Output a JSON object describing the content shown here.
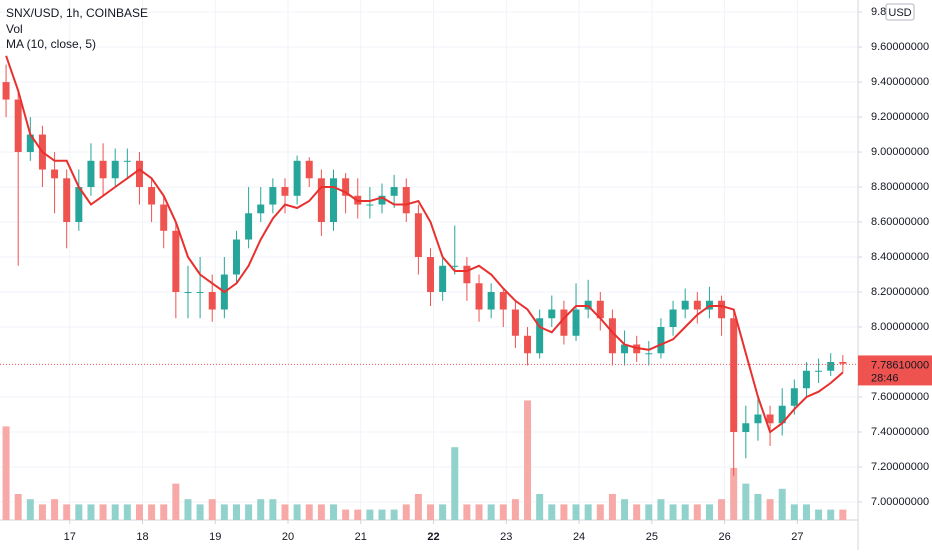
{
  "chart_data": {
    "type": "candlestick",
    "title": "SNX/USD, 1h, COINBASE",
    "volume_label": "Vol",
    "ma_label": "MA (10, close, 5)",
    "currency": "USD",
    "x": [
      2,
      6,
      10,
      14,
      18,
      22,
      26,
      30,
      34,
      38,
      42,
      46,
      50,
      54,
      58,
      62,
      66,
      70,
      74,
      78,
      82,
      86,
      90,
      94,
      98,
      102,
      106,
      110,
      114,
      118,
      122,
      126,
      130,
      134,
      138,
      142,
      146,
      150,
      154,
      158,
      162,
      166,
      170,
      174,
      178,
      182,
      186,
      190,
      194,
      198,
      202,
      206,
      210,
      214,
      218,
      222,
      226,
      230,
      234,
      238,
      242,
      246,
      250,
      254,
      258,
      262,
      266,
      270,
      274,
      278
    ],
    "open": [
      9.4,
      9.3,
      9.0,
      9.1,
      8.9,
      8.85,
      8.6,
      8.8,
      8.95,
      8.85,
      8.95,
      8.95,
      8.8,
      8.7,
      8.55,
      8.2,
      8.2,
      8.2,
      8.1,
      8.3,
      8.5,
      8.65,
      8.7,
      8.8,
      8.75,
      8.95,
      8.85,
      8.6,
      8.85,
      8.75,
      8.7,
      8.7,
      8.75,
      8.8,
      8.65,
      8.4,
      8.2,
      8.35,
      8.35,
      8.25,
      8.1,
      8.2,
      8.1,
      7.95,
      7.85,
      8.05,
      8.1,
      7.95,
      8.1,
      8.15,
      8.05,
      7.85,
      7.9,
      7.85,
      7.85,
      8.0,
      8.1,
      8.15,
      8.1,
      8.15,
      8.05,
      7.4,
      7.45,
      7.5,
      7.45,
      7.55,
      7.65,
      7.75,
      7.75,
      7.8
    ],
    "high": [
      9.5,
      9.35,
      9.2,
      9.15,
      9.0,
      8.9,
      8.9,
      9.05,
      9.05,
      9.02,
      9.02,
      9.0,
      8.85,
      8.75,
      8.6,
      8.35,
      8.4,
      8.3,
      8.4,
      8.55,
      8.8,
      8.8,
      8.85,
      8.85,
      8.98,
      8.97,
      8.9,
      8.9,
      8.88,
      8.85,
      8.8,
      8.82,
      8.87,
      8.85,
      8.7,
      8.45,
      8.4,
      8.58,
      8.4,
      8.3,
      8.25,
      8.22,
      8.15,
      8.0,
      8.1,
      8.18,
      8.15,
      8.25,
      8.27,
      8.2,
      8.1,
      7.98,
      7.95,
      7.92,
      8.05,
      8.15,
      8.22,
      8.2,
      8.23,
      8.18,
      8.1,
      7.55,
      7.6,
      7.55,
      7.65,
      7.7,
      7.8,
      7.82,
      7.85,
      7.84
    ],
    "low": [
      9.2,
      8.35,
      8.95,
      8.8,
      8.65,
      8.45,
      8.55,
      8.75,
      8.75,
      8.8,
      8.85,
      8.7,
      8.6,
      8.45,
      8.05,
      8.05,
      8.05,
      8.03,
      8.05,
      8.25,
      8.45,
      8.6,
      8.65,
      8.65,
      8.7,
      8.8,
      8.52,
      8.55,
      8.65,
      8.62,
      8.62,
      8.65,
      8.68,
      8.6,
      8.3,
      8.12,
      8.15,
      8.3,
      8.15,
      8.03,
      8.05,
      8.0,
      7.88,
      7.78,
      7.82,
      8.0,
      7.9,
      7.92,
      8.05,
      7.98,
      7.78,
      7.78,
      7.8,
      7.78,
      7.82,
      7.95,
      8.05,
      8.02,
      8.05,
      7.95,
      7.15,
      7.25,
      7.35,
      7.32,
      7.38,
      7.5,
      7.6,
      7.68,
      7.72,
      7.74
    ],
    "close": [
      9.3,
      9.0,
      9.1,
      8.9,
      8.85,
      8.6,
      8.8,
      8.95,
      8.85,
      8.95,
      8.95,
      8.8,
      8.7,
      8.55,
      8.2,
      8.2,
      8.2,
      8.1,
      8.3,
      8.5,
      8.65,
      8.7,
      8.8,
      8.75,
      8.95,
      8.85,
      8.6,
      8.85,
      8.75,
      8.7,
      8.7,
      8.75,
      8.8,
      8.65,
      8.4,
      8.2,
      8.35,
      8.35,
      8.25,
      8.1,
      8.2,
      8.1,
      7.95,
      7.85,
      8.05,
      8.1,
      7.95,
      8.1,
      8.15,
      8.05,
      7.85,
      7.9,
      7.85,
      7.85,
      8.0,
      8.1,
      8.15,
      8.1,
      8.15,
      8.05,
      7.4,
      7.45,
      7.5,
      7.45,
      7.55,
      7.65,
      7.75,
      7.75,
      7.8,
      7.79
    ],
    "volume": [
      18,
      5,
      4,
      3,
      4,
      3,
      3,
      3,
      3,
      3,
      3,
      3,
      3,
      3,
      7,
      4,
      3,
      4,
      3,
      3,
      3,
      4,
      4,
      3,
      3,
      3,
      3,
      3,
      2,
      2,
      2,
      2,
      2,
      3,
      5,
      3,
      3,
      14,
      3,
      3,
      3,
      3,
      4,
      23,
      5,
      3,
      3,
      3,
      3,
      3,
      5,
      4,
      3,
      3,
      4,
      3,
      3,
      3,
      3,
      4,
      10,
      7,
      5,
      4,
      6,
      3,
      3,
      2,
      2,
      2
    ],
    "ma": [
      9.55,
      9.35,
      9.1,
      9.0,
      8.95,
      8.95,
      8.8,
      8.7,
      8.75,
      8.8,
      8.85,
      8.9,
      8.85,
      8.75,
      8.6,
      8.4,
      8.3,
      8.25,
      8.2,
      8.25,
      8.35,
      8.5,
      8.62,
      8.7,
      8.68,
      8.72,
      8.8,
      8.8,
      8.77,
      8.72,
      8.72,
      8.74,
      8.7,
      8.7,
      8.72,
      8.6,
      8.4,
      8.32,
      8.32,
      8.35,
      8.3,
      8.22,
      8.15,
      8.1,
      8.0,
      7.97,
      8.05,
      8.12,
      8.12,
      8.05,
      7.97,
      7.9,
      7.88,
      7.87,
      7.9,
      7.93,
      8.0,
      8.07,
      8.12,
      8.12,
      8.1,
      7.85,
      7.6,
      7.4,
      7.45,
      7.53,
      7.6,
      7.63,
      7.68,
      7.74
    ],
    "up_color": "#26a69a",
    "down_color": "#ef5350",
    "volume_up_color": "#92d2cc",
    "volume_down_color": "#f7a9a7",
    "ma_color": "#e8312f",
    "xlim": [
      0,
      283
    ],
    "ylim": [
      6.897,
      9.869
    ],
    "y2lim": [
      0,
      100
    ],
    "grid": true,
    "xticks": [
      {
        "value": 23,
        "label": "17"
      },
      {
        "value": 47,
        "label": "18"
      },
      {
        "value": 71,
        "label": "19"
      },
      {
        "value": 95,
        "label": "20"
      },
      {
        "value": 119,
        "label": "21"
      },
      {
        "value": 143,
        "label": "22"
      },
      {
        "value": 167,
        "label": "23"
      },
      {
        "value": 191,
        "label": "24"
      },
      {
        "value": 215,
        "label": "25"
      },
      {
        "value": 239,
        "label": "26"
      },
      {
        "value": 263,
        "label": "27"
      }
    ],
    "yticks": [
      {
        "value": 7.0,
        "label": "7.00000000"
      },
      {
        "value": 7.2,
        "label": "7.20000000"
      },
      {
        "value": 7.4,
        "label": "7.40000000"
      },
      {
        "value": 7.6,
        "label": "7.60000000"
      },
      {
        "value": 8.0,
        "label": "8.00000000"
      },
      {
        "value": 8.2,
        "label": "8.20000000"
      },
      {
        "value": 8.4,
        "label": "8.40000000"
      },
      {
        "value": 8.6,
        "label": "8.60000000"
      },
      {
        "value": 8.8,
        "label": "8.80000000"
      },
      {
        "value": 9.0,
        "label": "9.00000000"
      },
      {
        "value": 9.2,
        "label": "9.20000000"
      },
      {
        "value": 9.4,
        "label": "9.40000000"
      },
      {
        "value": 9.6,
        "label": "9.60000000"
      },
      {
        "value": 9.8,
        "label": "9.8"
      }
    ],
    "last_price": {
      "value": 7.7861,
      "label": "7.78610000",
      "countdown": "28:46"
    }
  }
}
